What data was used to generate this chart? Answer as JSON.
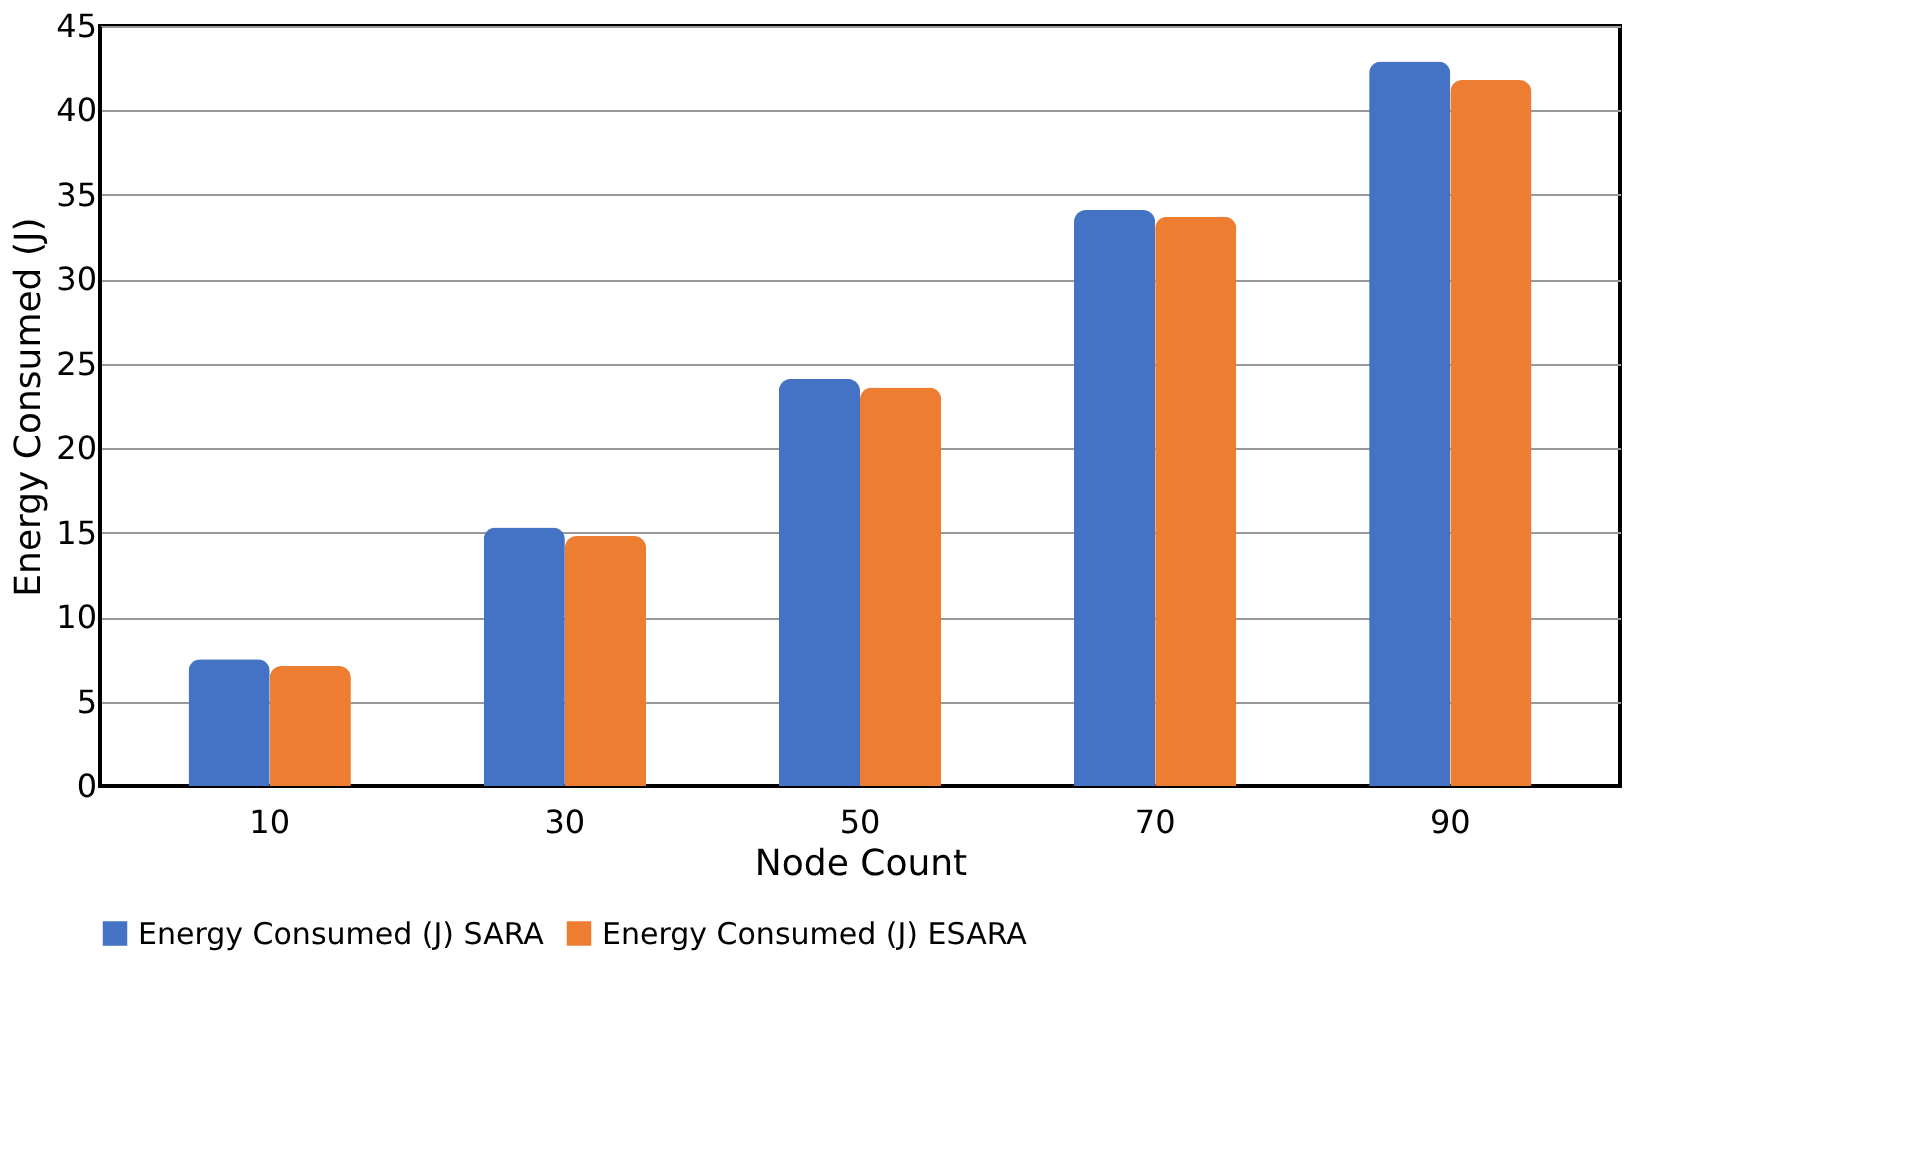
{
  "chart_data": {
    "type": "bar",
    "xlabel": "Node Count",
    "ylabel": "Energy Consumed (J)",
    "categories": [
      "10",
      "30",
      "50",
      "70",
      "90"
    ],
    "series": [
      {
        "name": "Energy Consumed (J) SARA",
        "color": "#4472c4",
        "values": [
          7.5,
          15.3,
          24.1,
          34.1,
          42.9
        ]
      },
      {
        "name": "Energy Consumed (J) ESARA",
        "color": "#ed7d31",
        "values": [
          7.1,
          14.8,
          23.6,
          33.7,
          41.8
        ]
      }
    ],
    "ylim": [
      0,
      45
    ],
    "yticks": [
      0,
      5,
      10,
      15,
      20,
      25,
      30,
      35,
      40,
      45
    ],
    "grid": "y",
    "legend": "bottom"
  }
}
